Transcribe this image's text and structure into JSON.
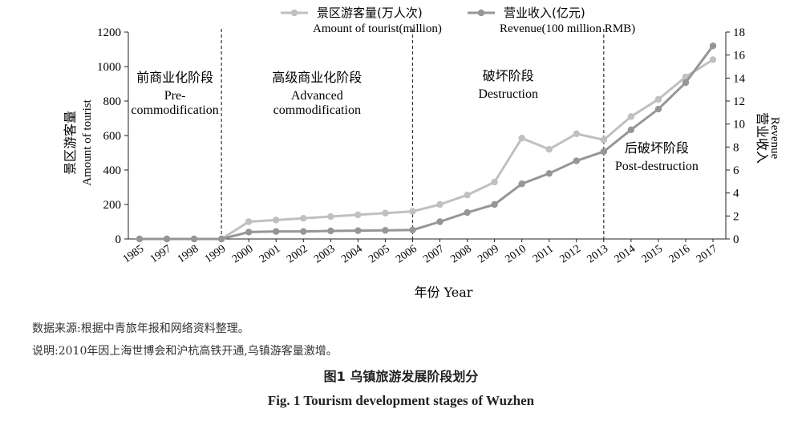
{
  "chart_data": {
    "type": "line",
    "categories": [
      "1985",
      "1997",
      "1998",
      "1999",
      "2000",
      "2001",
      "2002",
      "2003",
      "2004",
      "2005",
      "2006",
      "2007",
      "2008",
      "2009",
      "2010",
      "2011",
      "2012",
      "2013",
      "2014",
      "2015",
      "2016",
      "2017"
    ],
    "series": [
      {
        "name": "景区游客量(万人次)",
        "name_en": "Amount of tourist(million)",
        "axis": "left",
        "color": "#c0c0c0",
        "values": [
          0,
          0,
          0,
          0,
          100,
          110,
          120,
          130,
          140,
          150,
          160,
          200,
          255,
          330,
          585,
          520,
          610,
          575,
          710,
          810,
          940,
          1040
        ]
      },
      {
        "name": "营业收入(亿元)",
        "name_en": "Revenue(100 million RMB)",
        "axis": "right",
        "color": "#969696",
        "values": [
          0,
          0,
          0,
          0,
          0.6,
          0.65,
          0.65,
          0.7,
          0.72,
          0.75,
          0.78,
          1.5,
          2.3,
          3.0,
          4.8,
          5.7,
          6.8,
          7.6,
          9.5,
          11.3,
          13.6,
          16.8
        ]
      }
    ],
    "xlabel": "年份 Year",
    "ylabel_cn": "景区游客量",
    "ylabel_en": "Amount of tourist",
    "y2label_cn": "营业收入",
    "y2label_en": "Revenue",
    "ylim": [
      0,
      1200
    ],
    "y2lim": [
      0,
      18
    ],
    "yticks": [
      0,
      200,
      400,
      600,
      800,
      1000,
      1200
    ],
    "y2ticks": [
      0,
      2,
      4,
      6,
      8,
      10,
      12,
      14,
      16,
      18
    ],
    "grid": false,
    "legend_position": "top",
    "stage_dividers": [
      "1999",
      "2006",
      "2013"
    ],
    "stages": [
      {
        "cn": "前商业化阶段",
        "en": [
          "Pre-",
          "commodification"
        ]
      },
      {
        "cn": "高级商业化阶段",
        "en": [
          "Advanced",
          "commodification"
        ]
      },
      {
        "cn": "破坏阶段",
        "en": [
          "Destruction"
        ]
      },
      {
        "cn": "后破坏阶段",
        "en": [
          "Post-destruction"
        ]
      }
    ]
  },
  "notes": {
    "source": "数据来源:根据中青旅年报和网络资料整理。",
    "explanation": "说明:2010年因上海世博会和沪杭高铁开通,乌镇游客量激增。"
  },
  "caption": {
    "cn": "图1   乌镇旅游发展阶段划分",
    "en": "Fig. 1   Tourism development stages of Wuzhen"
  }
}
